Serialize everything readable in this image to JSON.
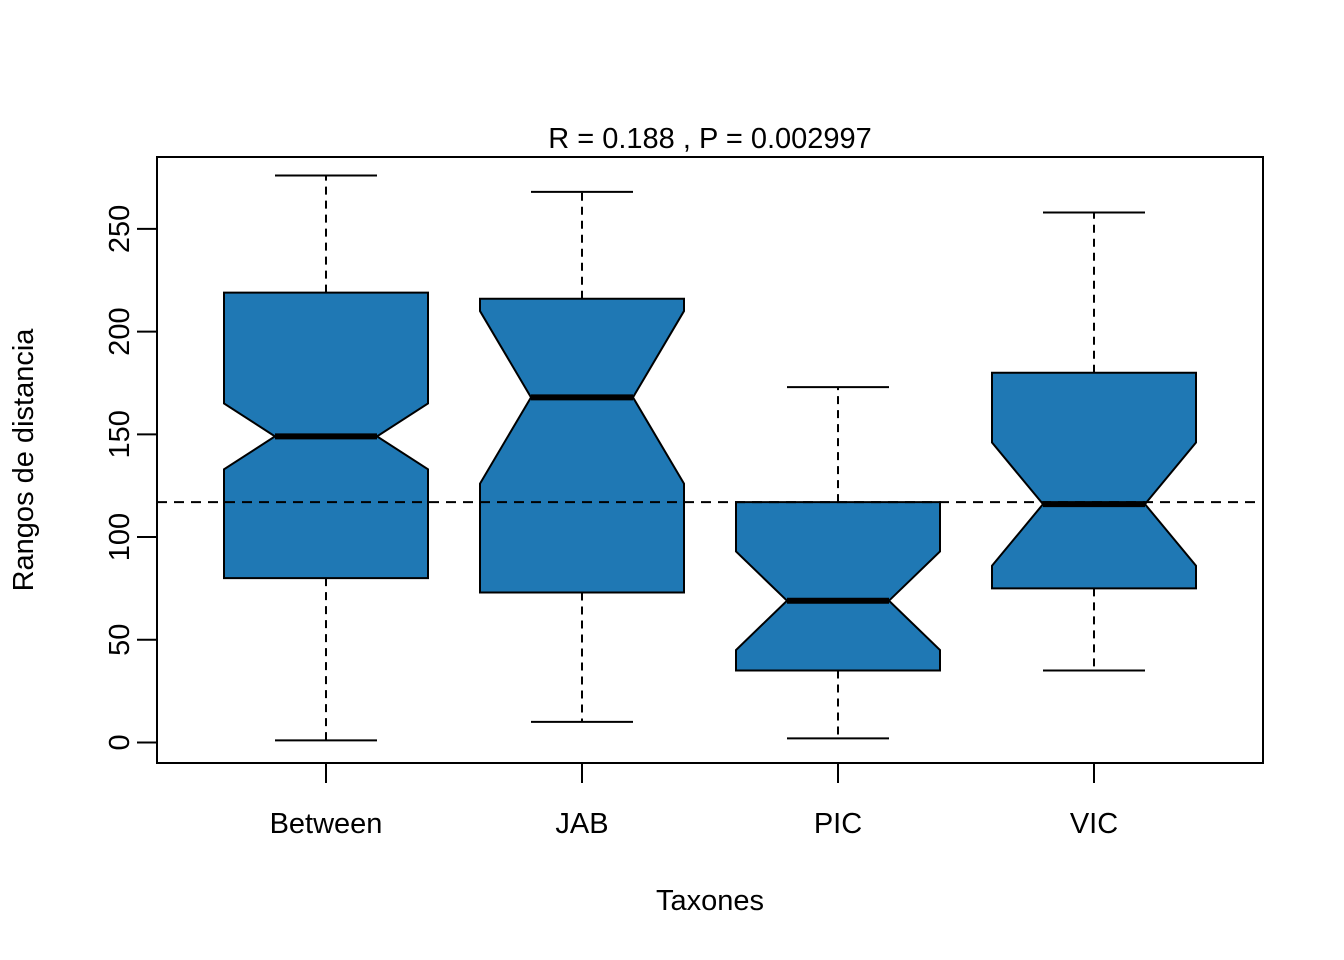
{
  "chart_data": {
    "type": "boxplot",
    "title": "R =  0.188 ,  P =  0.002997",
    "xlabel": "Taxones",
    "ylabel": "Rangos de distancia",
    "ylim": [
      -10,
      285
    ],
    "yticks": [
      0,
      50,
      100,
      150,
      200,
      250
    ],
    "notched": true,
    "reference_line": 117,
    "box_color": "#1F78B4",
    "grid": false,
    "categories": [
      "Between",
      "JAB",
      "PIC",
      "VIC"
    ],
    "boxes": [
      {
        "name": "Between",
        "min": 1,
        "q1": 80,
        "median": 149,
        "q3": 219,
        "max": 276,
        "notch_low": 133,
        "notch_high": 165
      },
      {
        "name": "JAB",
        "min": 10,
        "q1": 73,
        "median": 168,
        "q3": 216,
        "max": 268,
        "notch_low": 126,
        "notch_high": 210
      },
      {
        "name": "PIC",
        "min": 2,
        "q1": 35,
        "median": 69,
        "q3": 117,
        "max": 173,
        "notch_low": 45,
        "notch_high": 93
      },
      {
        "name": "VIC",
        "min": 35,
        "q1": 75,
        "median": 116,
        "q3": 180,
        "max": 258,
        "notch_low": 86,
        "notch_high": 146
      }
    ]
  }
}
